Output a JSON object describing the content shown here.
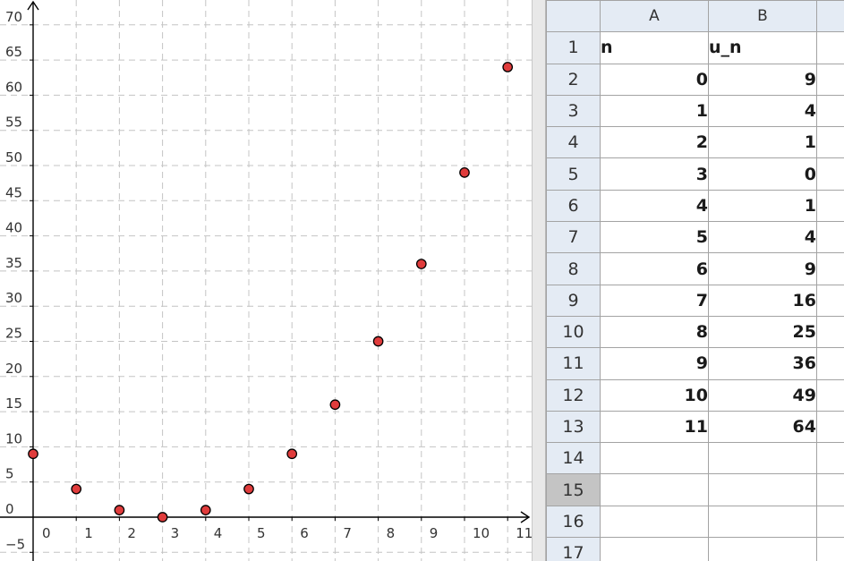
{
  "graphics": {
    "colors": {
      "grid": "#c4c4c4",
      "axis": "#000000",
      "point_fill": "#e03c3c",
      "point_stroke": "#000000"
    },
    "x_ticks": [
      "0",
      "1",
      "2",
      "3",
      "4",
      "5",
      "6",
      "7",
      "8",
      "9",
      "10",
      "11"
    ],
    "y_ticks": [
      "−5",
      "0",
      "5",
      "10",
      "15",
      "20",
      "25",
      "30",
      "35",
      "40",
      "45",
      "50",
      "55",
      "60",
      "65",
      "70"
    ]
  },
  "chart_data": {
    "type": "scatter",
    "title": "",
    "xlabel": "",
    "ylabel": "",
    "x": [
      0,
      1,
      2,
      3,
      4,
      5,
      6,
      7,
      8,
      9,
      10,
      11
    ],
    "y": [
      9,
      4,
      1,
      0,
      1,
      4,
      9,
      16,
      25,
      36,
      49,
      64
    ],
    "xlim": [
      -0.75,
      11.45
    ],
    "ylim": [
      -7,
      73
    ],
    "grid": true,
    "legend": "none"
  },
  "spreadsheet": {
    "columns": [
      "A",
      "B"
    ],
    "rows": [
      {
        "num": "1",
        "a": "n",
        "b": "u_n",
        "header": true
      },
      {
        "num": "2",
        "a": "0",
        "b": "9"
      },
      {
        "num": "3",
        "a": "1",
        "b": "4"
      },
      {
        "num": "4",
        "a": "2",
        "b": "1"
      },
      {
        "num": "5",
        "a": "3",
        "b": "0"
      },
      {
        "num": "6",
        "a": "4",
        "b": "1"
      },
      {
        "num": "7",
        "a": "5",
        "b": "4"
      },
      {
        "num": "8",
        "a": "6",
        "b": "9"
      },
      {
        "num": "9",
        "a": "7",
        "b": "16"
      },
      {
        "num": "10",
        "a": "8",
        "b": "25"
      },
      {
        "num": "11",
        "a": "9",
        "b": "36"
      },
      {
        "num": "12",
        "a": "10",
        "b": "49"
      },
      {
        "num": "13",
        "a": "11",
        "b": "64"
      },
      {
        "num": "14",
        "a": "",
        "b": ""
      },
      {
        "num": "15",
        "a": "",
        "b": "",
        "selected": true
      },
      {
        "num": "16",
        "a": "",
        "b": ""
      },
      {
        "num": "17",
        "a": "",
        "b": ""
      }
    ]
  }
}
